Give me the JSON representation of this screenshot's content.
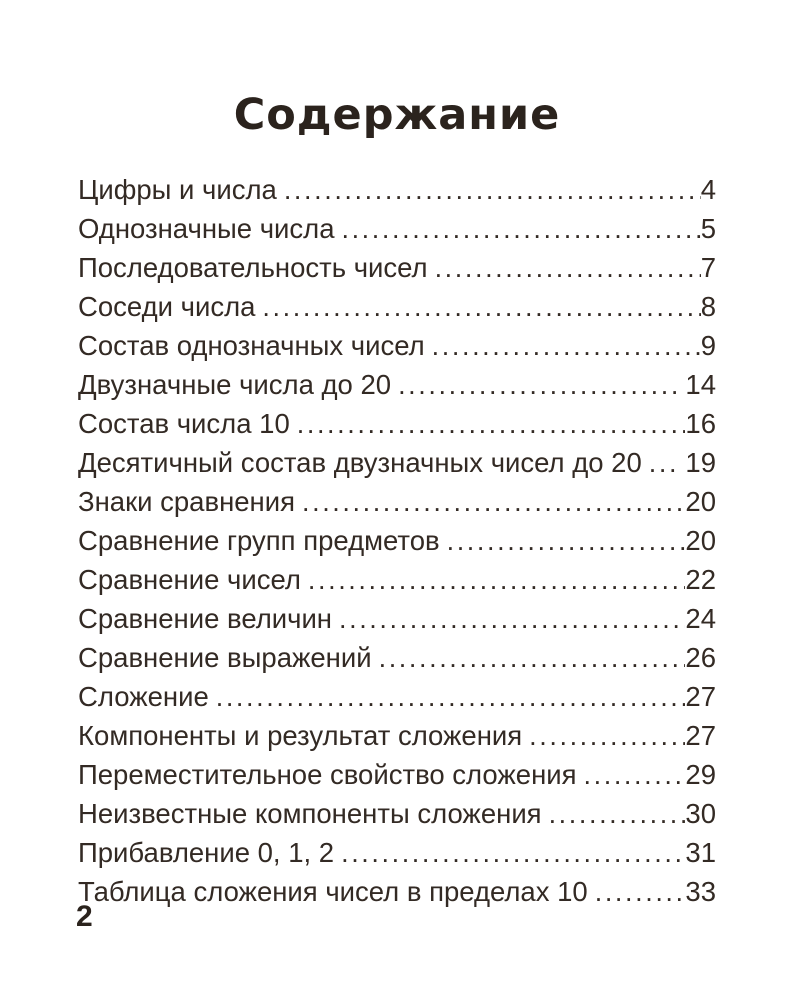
{
  "page": {
    "title": "Содержание",
    "folio": "2",
    "background_color": "#ffffff",
    "text_color": "#332a24"
  },
  "toc": {
    "items": [
      {
        "label": "Цифры и числа",
        "page": "4",
        "gap_before_page": false
      },
      {
        "label": "Однозначные числа",
        "page": "5",
        "gap_before_page": false
      },
      {
        "label": "Последовательность чисел",
        "page": "7",
        "gap_before_page": false
      },
      {
        "label": "Соседи числа",
        "page": "8",
        "gap_before_page": false
      },
      {
        "label": "Состав однозначных чисел",
        "page": "9",
        "gap_before_page": false
      },
      {
        "label": "Двузначные числа до 20",
        "page": "14",
        "gap_before_page": true
      },
      {
        "label": "Состав числа 10",
        "page": "16",
        "gap_before_page": false
      },
      {
        "label": "Десятичный состав двузначных чисел до 20",
        "page": "19",
        "gap_before_page": true
      },
      {
        "label": "Знаки сравнения",
        "page": "20",
        "gap_before_page": false
      },
      {
        "label": "Сравнение групп предметов",
        "page": "20",
        "gap_before_page": false
      },
      {
        "label": "Сравнение чисел",
        "page": "22",
        "gap_before_page": false
      },
      {
        "label": "Сравнение величин",
        "page": "24",
        "gap_before_page": false
      },
      {
        "label": "Сравнение выражений",
        "page": "26",
        "gap_before_page": false
      },
      {
        "label": "Сложение",
        "page": "27",
        "gap_before_page": false
      },
      {
        "label": "Компоненты и результат сложения",
        "page": "27",
        "gap_before_page": false
      },
      {
        "label": "Переместительное свойство сложения",
        "page": "29",
        "gap_before_page": false
      },
      {
        "label": "Неизвестные компоненты сложения",
        "page": "30",
        "gap_before_page": false
      },
      {
        "label": "Прибавление 0, 1, 2",
        "page": "31",
        "gap_before_page": false
      },
      {
        "label": "Таблица сложения чисел в пределах 10",
        "page": "33",
        "gap_before_page": false
      }
    ]
  }
}
